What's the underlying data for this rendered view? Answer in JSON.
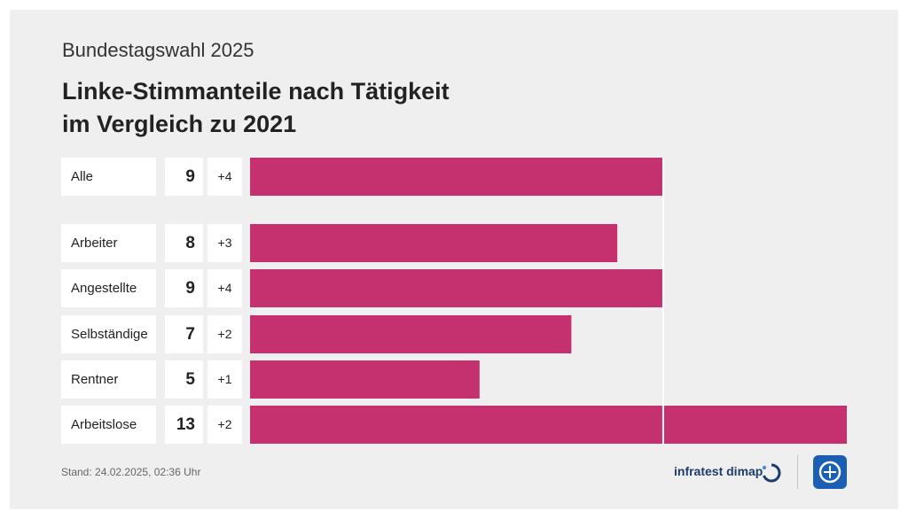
{
  "header": {
    "overline": "Bundestagswahl 2025",
    "title_line1": "Linke-Stimmanteile nach Tätigkeit",
    "title_line2": "im Vergleich zu 2021"
  },
  "chart_data": {
    "type": "bar",
    "orientation": "horizontal",
    "categories": [
      "Alle",
      "Arbeiter",
      "Angestellte",
      "Selbständige",
      "Rentner",
      "Arbeitslose"
    ],
    "series": [
      {
        "values": [
          9,
          8,
          9,
          7,
          5,
          13
        ],
        "value_labels": [
          "9",
          "8",
          "9",
          "7",
          "5",
          "13"
        ],
        "change_labels": [
          "+4",
          "+3",
          "+4",
          "+2",
          "+1",
          "+2"
        ]
      }
    ],
    "xlim": [
      0,
      13
    ],
    "reference_value": 9,
    "bar_color": "#c5306f",
    "grid": false
  },
  "footer": {
    "stand": "Stand:  24.02.2025, 02:36 Uhr",
    "brand": "infratest dimap"
  }
}
